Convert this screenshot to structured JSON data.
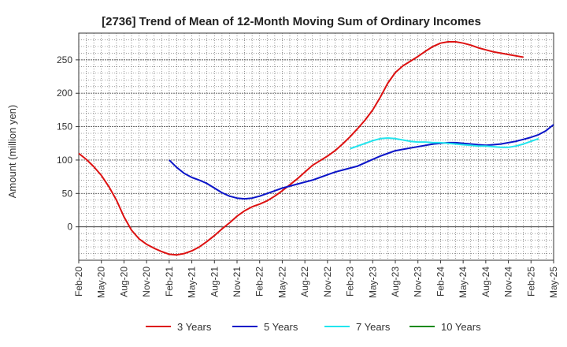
{
  "chart_data": {
    "type": "line",
    "title": "[2736]  Trend of Mean of 12-Month Moving Sum of Ordinary Incomes",
    "ylabel": "Amount (million yen)",
    "xlabel": "",
    "ylim": [
      -50,
      290
    ],
    "yticks": [
      0,
      50,
      100,
      150,
      200,
      250
    ],
    "xticks": [
      "Feb-20",
      "May-20",
      "Aug-20",
      "Nov-20",
      "Feb-21",
      "May-21",
      "Aug-21",
      "Nov-21",
      "Feb-22",
      "May-22",
      "Aug-22",
      "Nov-22",
      "Feb-23",
      "May-23",
      "Aug-23",
      "Nov-23",
      "Feb-24",
      "May-24",
      "Aug-24",
      "Nov-24",
      "Feb-25",
      "May-25"
    ],
    "grid": true,
    "legend_position": "bottom",
    "series": [
      {
        "name": "3 Years",
        "color": "#dd1111",
        "start_index": 0,
        "values": [
          110,
          101,
          90,
          77,
          60,
          40,
          15,
          -5,
          -18,
          -26,
          -32,
          -37,
          -41,
          -42,
          -40,
          -36,
          -30,
          -22,
          -13,
          -3,
          6,
          16,
          24,
          30,
          34,
          39,
          46,
          54,
          63,
          72,
          82,
          92,
          99,
          106,
          114,
          124,
          135,
          147,
          160,
          175,
          194,
          215,
          231,
          241,
          248,
          255,
          263,
          270,
          275,
          277,
          277,
          275,
          272,
          268,
          265,
          262,
          260,
          258,
          256,
          254
        ]
      },
      {
        "name": "5 Years",
        "color": "#0a14c8",
        "start_index": 12,
        "values": [
          100,
          89,
          80,
          74,
          70,
          65,
          58,
          51,
          46,
          43,
          42,
          43,
          46,
          50,
          54,
          58,
          61,
          64,
          67,
          70,
          74,
          78,
          82,
          85,
          88,
          91,
          96,
          101,
          106,
          110,
          114,
          116,
          118,
          120,
          122,
          124,
          125,
          126,
          126,
          125,
          124,
          123,
          122,
          123,
          124,
          126,
          128,
          131,
          134,
          138,
          144,
          153
        ]
      },
      {
        "name": "7 Years",
        "color": "#22e5ee",
        "start_index": 36,
        "values": [
          117,
          121,
          125,
          129,
          132,
          133,
          132,
          130,
          128,
          127,
          127,
          126,
          126,
          125,
          124,
          123,
          122,
          121,
          121,
          120,
          119,
          119,
          121,
          124,
          128,
          132
        ]
      },
      {
        "name": "10 Years",
        "color": "#1a8a1a",
        "start_index": 0,
        "values": []
      }
    ]
  }
}
